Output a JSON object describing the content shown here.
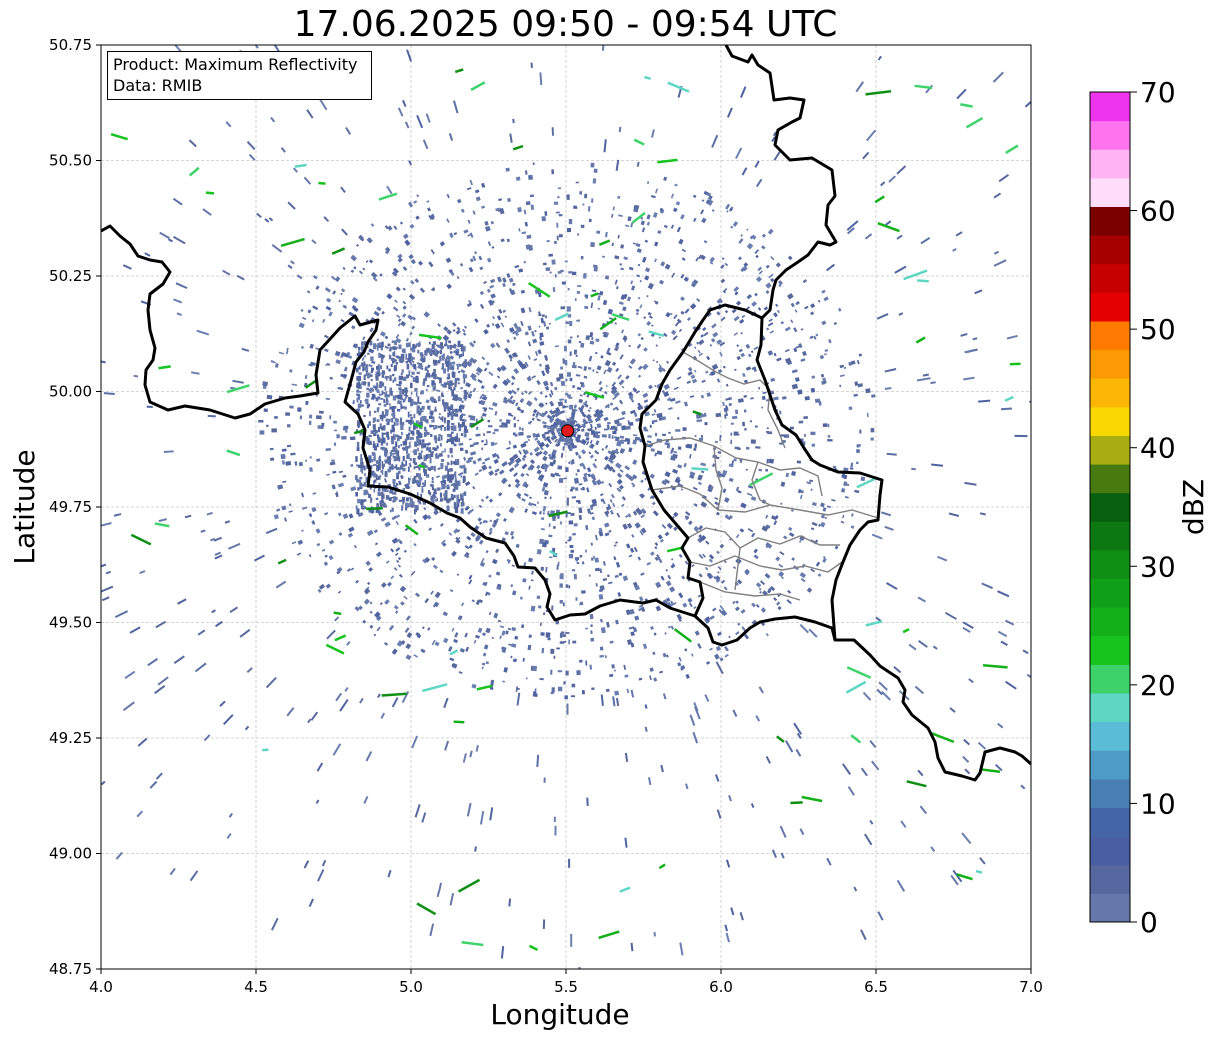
{
  "title": "17.06.2025 09:50 - 09:54 UTC",
  "info": {
    "product": "Product: Maximum Reflectivity",
    "data": "Data: RMIB"
  },
  "axes": {
    "xlabel": "Longitude",
    "ylabel": "Latitude",
    "xlim": [
      4.0,
      7.0
    ],
    "ylim": [
      48.75,
      50.75
    ],
    "xticks": [
      "4.0",
      "4.5",
      "5.0",
      "5.5",
      "6.0",
      "6.5",
      "7.0"
    ],
    "yticks": [
      "48.75",
      "49.00",
      "49.25",
      "49.50",
      "49.75",
      "50.00",
      "50.25",
      "50.50",
      "50.75"
    ],
    "grid": true
  },
  "radar_site": {
    "lon": 5.505,
    "lat": 49.915,
    "color": "#e41a1c"
  },
  "colorbar": {
    "label": "dBZ",
    "min": 0,
    "max": 70,
    "ticks": [
      "0",
      "10",
      "20",
      "30",
      "40",
      "50",
      "60",
      "70"
    ],
    "colors": [
      "#6677aa",
      "#56689f",
      "#4a5fa3",
      "#4466a8",
      "#4a7fb5",
      "#4f9bc8",
      "#5bbcd8",
      "#5ed6c4",
      "#3dd36a",
      "#16c41d",
      "#14b01a",
      "#10a017",
      "#0f8f14",
      "#0c7812",
      "#07600d",
      "#477a0f",
      "#a8ad12",
      "#f9d802",
      "#fbb606",
      "#fc9a03",
      "#fe7a00",
      "#e40000",
      "#c60000",
      "#a60000",
      "#7a0000",
      "#ffdcfa",
      "#ffb3f4",
      "#ff73ef",
      "#ee34ec"
    ]
  },
  "chart_data": {
    "type": "map",
    "title": "17.06.2025 09:50 - 09:54 UTC",
    "xlabel": "Longitude",
    "ylabel": "Latitude",
    "xlim": [
      4.0,
      7.0
    ],
    "ylim": [
      48.75,
      50.75
    ],
    "colorbar_label": "dBZ",
    "colorbar_range": [
      0,
      70
    ],
    "marker": {
      "lon": 5.505,
      "lat": 49.915
    }
  }
}
